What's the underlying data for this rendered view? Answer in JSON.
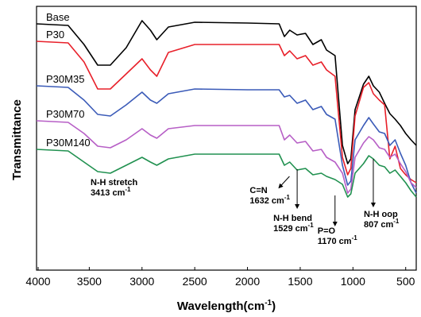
{
  "chart_data": {
    "type": "line",
    "title": "",
    "xlabel": "Wavelength(cm",
    "xlabel_sup": "-1",
    "xlabel_close": ")",
    "ylabel": "Transmittance",
    "xlim": [
      4000,
      400
    ],
    "x_inverted": true,
    "x_ticks": [
      "4000",
      "3500",
      "3000",
      "2500",
      "2000",
      "1500",
      "1000",
      "500"
    ],
    "y_ticks_labeled": false,
    "grid": false,
    "series": [
      {
        "name": "Base",
        "color": "#000000",
        "points": [
          [
            4000,
            22
          ],
          [
            3700,
            24
          ],
          [
            3550,
            48
          ],
          [
            3420,
            74
          ],
          [
            3300,
            74
          ],
          [
            3150,
            52
          ],
          [
            3000,
            18
          ],
          [
            2920,
            30
          ],
          [
            2860,
            42
          ],
          [
            2750,
            26
          ],
          [
            2500,
            20
          ],
          [
            2000,
            21
          ],
          [
            1700,
            22
          ],
          [
            1650,
            38
          ],
          [
            1600,
            30
          ],
          [
            1530,
            36
          ],
          [
            1450,
            34
          ],
          [
            1380,
            48
          ],
          [
            1300,
            42
          ],
          [
            1250,
            55
          ],
          [
            1170,
            62
          ],
          [
            1100,
            175
          ],
          [
            1050,
            198
          ],
          [
            1020,
            192
          ],
          [
            980,
            130
          ],
          [
            900,
            98
          ],
          [
            850,
            88
          ],
          [
            807,
            100
          ],
          [
            750,
            108
          ],
          [
            700,
            122
          ],
          [
            650,
            135
          ],
          [
            600,
            142
          ],
          [
            550,
            150
          ],
          [
            500,
            160
          ],
          [
            450,
            168
          ],
          [
            400,
            175
          ]
        ]
      },
      {
        "name": "P30",
        "color": "#e8202a",
        "points": [
          [
            4000,
            44
          ],
          [
            3700,
            46
          ],
          [
            3550,
            70
          ],
          [
            3420,
            104
          ],
          [
            3300,
            104
          ],
          [
            3150,
            85
          ],
          [
            3000,
            66
          ],
          [
            2920,
            80
          ],
          [
            2860,
            88
          ],
          [
            2750,
            58
          ],
          [
            2500,
            48
          ],
          [
            2000,
            48
          ],
          [
            1700,
            48
          ],
          [
            1650,
            62
          ],
          [
            1600,
            56
          ],
          [
            1530,
            66
          ],
          [
            1450,
            62
          ],
          [
            1380,
            74
          ],
          [
            1300,
            70
          ],
          [
            1250,
            80
          ],
          [
            1170,
            88
          ],
          [
            1100,
            190
          ],
          [
            1050,
            212
          ],
          [
            1020,
            204
          ],
          [
            980,
            138
          ],
          [
            900,
            102
          ],
          [
            850,
            96
          ],
          [
            807,
            110
          ],
          [
            750,
            118
          ],
          [
            700,
            124
          ],
          [
            650,
            192
          ],
          [
            600,
            176
          ],
          [
            550,
            204
          ],
          [
            500,
            212
          ],
          [
            450,
            218
          ],
          [
            400,
            222
          ]
        ]
      },
      {
        "name": "P30M35",
        "color": "#3b5bb8",
        "points": [
          [
            4000,
            100
          ],
          [
            3700,
            102
          ],
          [
            3550,
            118
          ],
          [
            3420,
            136
          ],
          [
            3300,
            138
          ],
          [
            3150,
            124
          ],
          [
            3000,
            108
          ],
          [
            2920,
            118
          ],
          [
            2860,
            122
          ],
          [
            2750,
            110
          ],
          [
            2500,
            104
          ],
          [
            2000,
            105
          ],
          [
            1700,
            105
          ],
          [
            1650,
            114
          ],
          [
            1600,
            112
          ],
          [
            1530,
            122
          ],
          [
            1450,
            118
          ],
          [
            1380,
            130
          ],
          [
            1300,
            126
          ],
          [
            1250,
            136
          ],
          [
            1170,
            142
          ],
          [
            1100,
            200
          ],
          [
            1050,
            225
          ],
          [
            1020,
            220
          ],
          [
            980,
            168
          ],
          [
            900,
            150
          ],
          [
            850,
            140
          ],
          [
            807,
            148
          ],
          [
            750,
            158
          ],
          [
            700,
            160
          ],
          [
            650,
            175
          ],
          [
            600,
            168
          ],
          [
            550,
            185
          ],
          [
            500,
            200
          ],
          [
            450,
            222
          ],
          [
            400,
            235
          ]
        ]
      },
      {
        "name": "P30M70",
        "color": "#b75fc6",
        "points": [
          [
            4000,
            144
          ],
          [
            3700,
            146
          ],
          [
            3550,
            160
          ],
          [
            3420,
            176
          ],
          [
            3300,
            178
          ],
          [
            3150,
            168
          ],
          [
            3000,
            154
          ],
          [
            2920,
            162
          ],
          [
            2860,
            166
          ],
          [
            2750,
            154
          ],
          [
            2500,
            150
          ],
          [
            2000,
            150
          ],
          [
            1700,
            150
          ],
          [
            1650,
            168
          ],
          [
            1600,
            162
          ],
          [
            1530,
            172
          ],
          [
            1450,
            170
          ],
          [
            1380,
            182
          ],
          [
            1300,
            180
          ],
          [
            1250,
            190
          ],
          [
            1170,
            196
          ],
          [
            1100,
            210
          ],
          [
            1050,
            235
          ],
          [
            1020,
            230
          ],
          [
            980,
            190
          ],
          [
            900,
            172
          ],
          [
            850,
            164
          ],
          [
            807,
            168
          ],
          [
            750,
            178
          ],
          [
            700,
            180
          ],
          [
            650,
            190
          ],
          [
            600,
            186
          ],
          [
            550,
            198
          ],
          [
            500,
            208
          ],
          [
            450,
            222
          ],
          [
            400,
            228
          ]
        ]
      },
      {
        "name": "P30M140",
        "color": "#219150",
        "points": [
          [
            4000,
            180
          ],
          [
            3700,
            182
          ],
          [
            3550,
            196
          ],
          [
            3420,
            208
          ],
          [
            3300,
            210
          ],
          [
            3150,
            200
          ],
          [
            3000,
            190
          ],
          [
            2920,
            196
          ],
          [
            2860,
            200
          ],
          [
            2750,
            192
          ],
          [
            2500,
            186
          ],
          [
            2000,
            186
          ],
          [
            1700,
            186
          ],
          [
            1650,
            200
          ],
          [
            1600,
            196
          ],
          [
            1530,
            206
          ],
          [
            1450,
            204
          ],
          [
            1380,
            212
          ],
          [
            1300,
            210
          ],
          [
            1250,
            214
          ],
          [
            1170,
            218
          ],
          [
            1100,
            224
          ],
          [
            1050,
            240
          ],
          [
            1020,
            236
          ],
          [
            980,
            210
          ],
          [
            900,
            198
          ],
          [
            850,
            188
          ],
          [
            807,
            192
          ],
          [
            750,
            200
          ],
          [
            700,
            202
          ],
          [
            650,
            210
          ],
          [
            600,
            206
          ],
          [
            550,
            214
          ],
          [
            500,
            222
          ],
          [
            450,
            232
          ],
          [
            400,
            240
          ]
        ]
      }
    ],
    "annotations": [
      {
        "label": "N-H stretch",
        "value": "3413 cm",
        "sup": "-1",
        "x": 3413,
        "arrow": false
      },
      {
        "label": "C=N",
        "value": "1632 cm",
        "sup": "-1",
        "x": 1632,
        "arrow": true
      },
      {
        "label": "N-H bend",
        "value": "1529 cm",
        "sup": "-1",
        "x": 1529,
        "arrow": true
      },
      {
        "label": "P=O",
        "value": "1170 cm",
        "sup": "-1",
        "x": 1170,
        "arrow": true
      },
      {
        "label": "N-H oop",
        "value": "807 cm",
        "sup": "-1",
        "x": 807,
        "arrow": true
      }
    ]
  }
}
